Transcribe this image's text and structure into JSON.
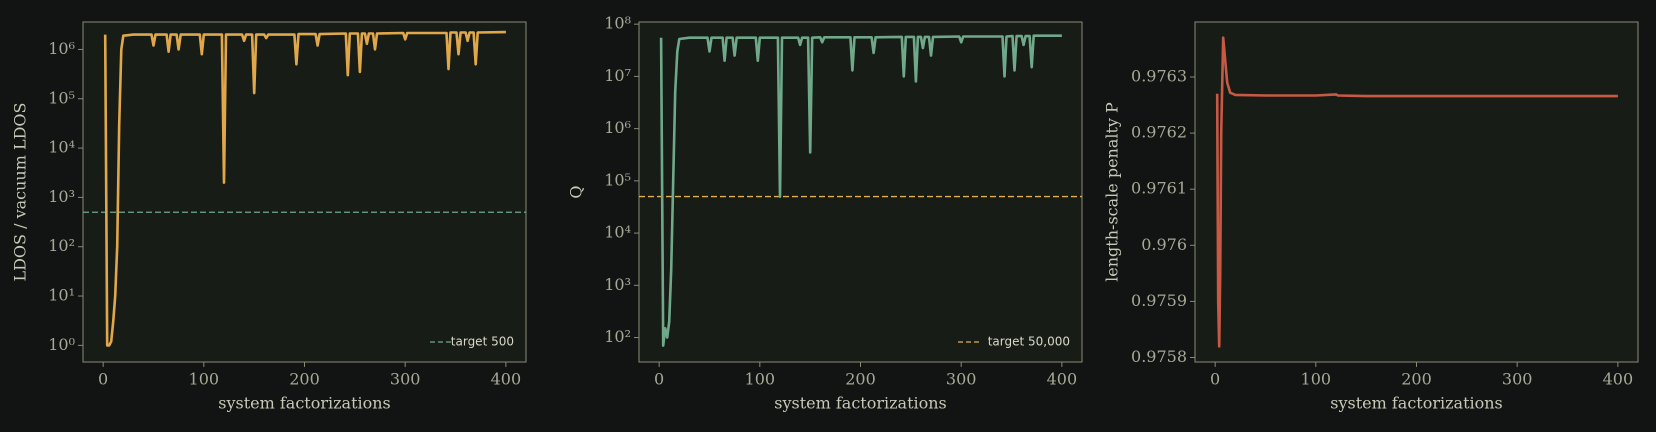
{
  "chart_data": [
    {
      "type": "line",
      "log_y": true,
      "ylabel": "LDOS / vacuum LDOS",
      "xlabel": "system factorizations",
      "color": "#e0a84a",
      "xlim": [
        -20,
        420
      ],
      "xticks": [
        0,
        100,
        200,
        300,
        400
      ],
      "ylim": [
        0.46,
        3600000
      ],
      "yticks": [
        {
          "value": 1,
          "label": "10⁰"
        },
        {
          "value": 10,
          "label": "10¹"
        },
        {
          "value": 100,
          "label": "10²"
        },
        {
          "value": 1000,
          "label": "10³"
        },
        {
          "value": 10000,
          "label": "10⁴"
        },
        {
          "value": 100000,
          "label": "10⁵"
        },
        {
          "value": 1000000,
          "label": "10⁶"
        }
      ],
      "target": {
        "value": 500,
        "label": "target 500",
        "color": "#6fa98a"
      },
      "legend": "lower right",
      "x": [
        2,
        4,
        6,
        8,
        10,
        12,
        14,
        16,
        18,
        20,
        30,
        48,
        50,
        52,
        63,
        65,
        67,
        73,
        75,
        77,
        96,
        98,
        100,
        118,
        120,
        122,
        138,
        140,
        142,
        148,
        150,
        152,
        160,
        162,
        164,
        190,
        192,
        194,
        211,
        213,
        215,
        241,
        243,
        245,
        253,
        255,
        257,
        260,
        262,
        264,
        268,
        270,
        272,
        298,
        300,
        302,
        341,
        343,
        345,
        351,
        353,
        355,
        360,
        362,
        364,
        368,
        370,
        372,
        400
      ],
      "values": [
        2000000,
        1,
        1,
        1.2,
        3,
        10,
        100,
        30000,
        1000000,
        1900000,
        2000000,
        2000000,
        1200000,
        2000000,
        2000000,
        900000,
        2000000,
        2000000,
        1000000,
        2000000,
        2000000,
        800000,
        2000000,
        2000000,
        2000,
        2000000,
        2000000,
        1500000,
        2000000,
        2000000,
        130000,
        2000000,
        2000000,
        1700000,
        2000000,
        2000000,
        500000,
        2050000,
        2050000,
        1200000,
        2050000,
        2100000,
        300000,
        2100000,
        2100000,
        350000,
        2100000,
        2100000,
        1300000,
        2100000,
        2100000,
        1000000,
        2100000,
        2150000,
        1600000,
        2150000,
        2150000,
        400000,
        2200000,
        2200000,
        800000,
        2200000,
        2200000,
        1500000,
        2200000,
        2200000,
        500000,
        2200000,
        2250000
      ]
    },
    {
      "type": "line",
      "log_y": true,
      "ylabel": "Q",
      "xlabel": "system factorizations",
      "color": "#6fa98a",
      "xlim": [
        -20,
        420
      ],
      "xticks": [
        0,
        100,
        200,
        300,
        400
      ],
      "ylim": [
        34,
        110000000
      ],
      "yticks": [
        {
          "value": 100,
          "label": "10²"
        },
        {
          "value": 1000,
          "label": "10³"
        },
        {
          "value": 10000,
          "label": "10⁴"
        },
        {
          "value": 100000,
          "label": "10⁵"
        },
        {
          "value": 1000000,
          "label": "10⁶"
        },
        {
          "value": 10000000,
          "label": "10⁷"
        },
        {
          "value": 100000000,
          "label": "10⁸"
        }
      ],
      "target": {
        "value": 50000,
        "label": "target 50,000",
        "color": "#e0b050"
      },
      "legend": "lower right",
      "x": [
        2,
        4,
        6,
        8,
        10,
        12,
        14,
        16,
        18,
        20,
        30,
        48,
        50,
        52,
        63,
        65,
        67,
        73,
        75,
        77,
        96,
        98,
        100,
        118,
        120,
        122,
        138,
        140,
        142,
        148,
        150,
        152,
        160,
        162,
        164,
        190,
        192,
        194,
        211,
        213,
        215,
        241,
        243,
        245,
        253,
        255,
        257,
        260,
        262,
        264,
        268,
        270,
        272,
        298,
        300,
        302,
        341,
        343,
        345,
        351,
        353,
        355,
        360,
        362,
        364,
        368,
        370,
        372,
        400
      ],
      "values": [
        55000000,
        70,
        150,
        100,
        200,
        2000,
        100000,
        5000000,
        30000000,
        52000000,
        55000000,
        55000000,
        30000000,
        55000000,
        55000000,
        20000000,
        55000000,
        55000000,
        25000000,
        55000000,
        55000000,
        20000000,
        55000000,
        55000000,
        50000,
        55000000,
        55000000,
        40000000,
        55000000,
        55000000,
        350000,
        55000000,
        56000000,
        45000000,
        56000000,
        56000000,
        13000000,
        56000000,
        56000000,
        28000000,
        56000000,
        57000000,
        10000000,
        57000000,
        57000000,
        8000000,
        57000000,
        57000000,
        35000000,
        57000000,
        57000000,
        25000000,
        57000000,
        58000000,
        45000000,
        58000000,
        58000000,
        10000000,
        58000000,
        59000000,
        13000000,
        59000000,
        59000000,
        40000000,
        59000000,
        59000000,
        15000000,
        60000000,
        60000000
      ]
    },
    {
      "type": "line",
      "log_y": false,
      "ylabel": "length-scale penalty P",
      "xlabel": "system factorizations",
      "color": "#c85a45",
      "xlim": [
        -20,
        420
      ],
      "xticks": [
        0,
        100,
        200,
        300,
        400
      ],
      "ylim": [
        0.975792,
        0.976398
      ],
      "yticks": [
        0.9758,
        0.9759,
        0.976,
        0.9761,
        0.9762,
        0.9763
      ],
      "x": [
        2,
        3,
        4,
        5,
        6,
        8,
        10,
        12,
        15,
        20,
        50,
        100,
        120,
        122,
        150,
        200,
        300,
        400
      ],
      "values": [
        0.97627,
        0.9759,
        0.97582,
        0.97595,
        0.9762,
        0.97637,
        0.97633,
        0.97629,
        0.976272,
        0.976268,
        0.976267,
        0.976267,
        0.976269,
        0.976267,
        0.976266,
        0.976266,
        0.976266,
        0.976266
      ],
      "yticklabels_override": null
    }
  ]
}
